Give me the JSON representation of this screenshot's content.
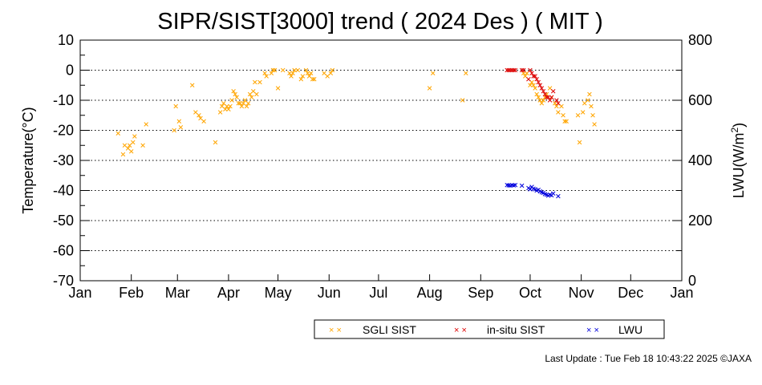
{
  "chart_data": {
    "type": "scatter",
    "title": "SIPR/SIST[3000] trend ( 2024 Des ) ( MIT )",
    "ylabel": "Temperature(°C)",
    "y2label_prefix": "LWU(W/m",
    "y2label_sup": "2",
    "y2label_suffix": ")",
    "ylim": [
      -70,
      10
    ],
    "y2lim": [
      0,
      800
    ],
    "xlim_day": [
      0,
      365
    ],
    "y_ticks": [
      {
        "v": 10,
        "label": "10"
      },
      {
        "v": 0,
        "label": "0"
      },
      {
        "v": -10,
        "label": "-10"
      },
      {
        "v": -20,
        "label": "-20"
      },
      {
        "v": -30,
        "label": "-30"
      },
      {
        "v": -40,
        "label": "-40"
      },
      {
        "v": -50,
        "label": "-50"
      },
      {
        "v": -60,
        "label": "-60"
      },
      {
        "v": -70,
        "label": "-70"
      }
    ],
    "y2_ticks": [
      {
        "v": 800,
        "label": "800"
      },
      {
        "v": 600,
        "label": "600"
      },
      {
        "v": 400,
        "label": "400"
      },
      {
        "v": 200,
        "label": "200"
      },
      {
        "v": 0,
        "label": "0"
      }
    ],
    "x_ticks": [
      {
        "day": 0,
        "label": "Jan"
      },
      {
        "day": 31,
        "label": "Feb"
      },
      {
        "day": 59,
        "label": "Mar"
      },
      {
        "day": 90,
        "label": "Apr"
      },
      {
        "day": 120,
        "label": "May"
      },
      {
        "day": 151,
        "label": "Jun"
      },
      {
        "day": 181,
        "label": "Jul"
      },
      {
        "day": 212,
        "label": "Aug"
      },
      {
        "day": 243,
        "label": "Sep"
      },
      {
        "day": 273,
        "label": "Oct"
      },
      {
        "day": 304,
        "label": "Nov"
      },
      {
        "day": 334,
        "label": "Dec"
      },
      {
        "day": 365,
        "label": "Jan"
      }
    ],
    "grid": "horizontal dotted",
    "series": [
      {
        "name": "SGLI SIST",
        "color": "#ffa500",
        "axis": "left",
        "points": [
          [
            23,
            -21
          ],
          [
            26,
            -28
          ],
          [
            27,
            -25
          ],
          [
            29,
            -26
          ],
          [
            30,
            -25
          ],
          [
            31,
            -27
          ],
          [
            32,
            -24
          ],
          [
            33,
            -22
          ],
          [
            38,
            -25
          ],
          [
            40,
            -18
          ],
          [
            57,
            -20
          ],
          [
            58,
            -12
          ],
          [
            60,
            -17
          ],
          [
            61,
            -19
          ],
          [
            68,
            -5
          ],
          [
            70,
            -14
          ],
          [
            72,
            -15
          ],
          [
            73,
            -16
          ],
          [
            75,
            -17
          ],
          [
            82,
            -24
          ],
          [
            85,
            -14
          ],
          [
            86,
            -12
          ],
          [
            87,
            -11
          ],
          [
            88,
            -13
          ],
          [
            89,
            -12
          ],
          [
            90,
            -13
          ],
          [
            91,
            -12
          ],
          [
            92,
            -10
          ],
          [
            93,
            -7
          ],
          [
            94,
            -8
          ],
          [
            95,
            -9
          ],
          [
            96,
            -11
          ],
          [
            97,
            -11
          ],
          [
            98,
            -12
          ],
          [
            99,
            -11
          ],
          [
            100,
            -10
          ],
          [
            101,
            -12
          ],
          [
            102,
            -11
          ],
          [
            103,
            -8
          ],
          [
            104,
            -9
          ],
          [
            105,
            -7
          ],
          [
            106,
            -4
          ],
          [
            107,
            -8
          ],
          [
            109,
            -4
          ],
          [
            112,
            -1
          ],
          [
            113,
            -2
          ],
          [
            116,
            -1
          ],
          [
            117,
            0
          ],
          [
            118,
            0
          ],
          [
            120,
            -6
          ],
          [
            123,
            0
          ],
          [
            127,
            -1
          ],
          [
            128,
            -2
          ],
          [
            129,
            -1
          ],
          [
            130,
            0
          ],
          [
            132,
            0
          ],
          [
            134,
            -3
          ],
          [
            135,
            -2
          ],
          [
            137,
            0
          ],
          [
            138,
            -1
          ],
          [
            139,
            -2
          ],
          [
            140,
            -1
          ],
          [
            141,
            -3
          ],
          [
            142,
            -3
          ],
          [
            148,
            -1
          ],
          [
            150,
            -2
          ],
          [
            152,
            -1
          ],
          [
            153,
            0
          ],
          [
            212,
            -6
          ],
          [
            214,
            -1
          ],
          [
            232,
            -10
          ],
          [
            234,
            -1
          ],
          [
            269,
            -1
          ],
          [
            270,
            -2
          ],
          [
            271,
            -1
          ],
          [
            273,
            -5
          ],
          [
            274,
            -4
          ],
          [
            275,
            -5
          ],
          [
            276,
            -6
          ],
          [
            277,
            -8
          ],
          [
            278,
            -9
          ],
          [
            279,
            -10
          ],
          [
            280,
            -11
          ],
          [
            281,
            -10
          ],
          [
            282,
            -9
          ],
          [
            283,
            -8
          ],
          [
            285,
            -6
          ],
          [
            286,
            -9
          ],
          [
            288,
            -11
          ],
          [
            289,
            -12
          ],
          [
            290,
            -14
          ],
          [
            292,
            -12
          ],
          [
            293,
            -15
          ],
          [
            294,
            -17
          ],
          [
            295,
            -17
          ],
          [
            302,
            -15
          ],
          [
            303,
            -24
          ],
          [
            305,
            -14
          ],
          [
            306,
            -11
          ],
          [
            308,
            -10
          ],
          [
            309,
            -8
          ],
          [
            310,
            -12
          ],
          [
            311,
            -15
          ],
          [
            312,
            -18
          ]
        ]
      },
      {
        "name": "in-situ SIST",
        "color": "#dd0000",
        "axis": "left",
        "points": [
          [
            259,
            0
          ],
          [
            260,
            0
          ],
          [
            261,
            0
          ],
          [
            262,
            0
          ],
          [
            263,
            0
          ],
          [
            264,
            0
          ],
          [
            268,
            0
          ],
          [
            269,
            0
          ],
          [
            272,
            -3
          ],
          [
            273,
            0
          ],
          [
            274,
            -1
          ],
          [
            275,
            -2
          ],
          [
            276,
            -2
          ],
          [
            277,
            -3
          ],
          [
            278,
            -4
          ],
          [
            279,
            -5
          ],
          [
            280,
            -6
          ],
          [
            281,
            -7
          ],
          [
            282,
            -8
          ],
          [
            283,
            -9
          ],
          [
            284,
            -9
          ],
          [
            285,
            -10
          ],
          [
            286,
            -9
          ],
          [
            287,
            -7
          ],
          [
            289,
            -10
          ],
          [
            290,
            -11
          ]
        ]
      },
      {
        "name": "LWU",
        "color": "#0000dd",
        "axis": "right",
        "points": [
          [
            259,
            318
          ],
          [
            260,
            317
          ],
          [
            261,
            316
          ],
          [
            262,
            318
          ],
          [
            263,
            317
          ],
          [
            264,
            318
          ],
          [
            268,
            316
          ],
          [
            272,
            308
          ],
          [
            273,
            304
          ],
          [
            274,
            312
          ],
          [
            275,
            306
          ],
          [
            276,
            304
          ],
          [
            277,
            300
          ],
          [
            278,
            302
          ],
          [
            279,
            297
          ],
          [
            280,
            294
          ],
          [
            281,
            292
          ],
          [
            282,
            288
          ],
          [
            283,
            286
          ],
          [
            284,
            283
          ],
          [
            285,
            286
          ],
          [
            286,
            284
          ],
          [
            287,
            290
          ],
          [
            290,
            281
          ]
        ]
      }
    ]
  },
  "footer": {
    "last_update": "Last Update : Tue Feb 18 10:43:22 2025  ©JAXA"
  }
}
